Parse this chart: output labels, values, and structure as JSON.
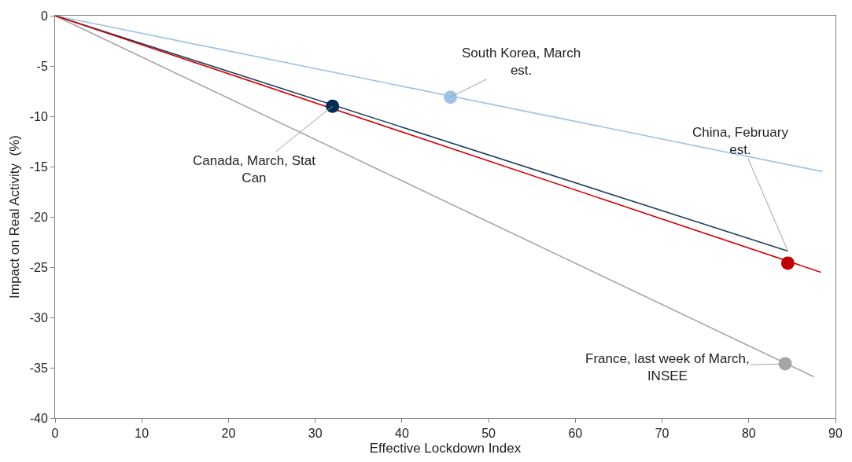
{
  "chart_data": {
    "type": "line",
    "xlabel": "Effective Lockdown Index",
    "ylabel": "Impact on Real Activity  (%)",
    "xlim": [
      0,
      90
    ],
    "xticks": [
      0,
      10,
      20,
      30,
      40,
      50,
      60,
      70,
      80,
      90
    ],
    "ylim": [
      -40,
      0
    ],
    "yticks": [
      -40,
      -35,
      -30,
      -25,
      -20,
      -15,
      -10,
      -5,
      0
    ],
    "series": [
      {
        "color": "#9dc3e6",
        "x": [
          0,
          88.5
        ],
        "values": [
          0,
          -15.5
        ]
      },
      {
        "color": "#a6a6a6",
        "x": [
          0,
          87.5
        ],
        "values": [
          0,
          -35.9
        ]
      },
      {
        "color": "#1f3f60",
        "x": [
          0,
          84.5
        ],
        "values": [
          0,
          -23.4
        ]
      },
      {
        "color": "#d00000",
        "x": [
          0,
          88.3
        ],
        "values": [
          0,
          -25.5
        ]
      },
      {
        "type": "scatter",
        "marker": "circle",
        "color": "#9dc3e6",
        "x": [
          45.6
        ],
        "values": [
          -8.1
        ]
      },
      {
        "type": "scatter",
        "marker": "circle",
        "color": "#a6a6a6",
        "x": [
          84.2
        ],
        "values": [
          -34.6
        ]
      },
      {
        "type": "scatter",
        "marker": "circle",
        "color": "#c00000",
        "x": [
          84.5
        ],
        "values": [
          -24.6
        ]
      },
      {
        "type": "scatter",
        "marker": "circle",
        "color": "#002b55",
        "x": [
          32.0
        ],
        "values": [
          -9.0
        ]
      }
    ],
    "annotations": [
      {
        "text": "South Korea, March\nest.",
        "x": 45.6,
        "y": -8.1
      },
      {
        "text": "China, February\nest.",
        "x": 84.5,
        "y": -23.4
      },
      {
        "text": "Canada, March, Stat\nCan",
        "x": 32.0,
        "y": -9.0
      },
      {
        "text": "France, last week of March,\nINSEE",
        "x": 84.2,
        "y": -34.6
      }
    ]
  }
}
